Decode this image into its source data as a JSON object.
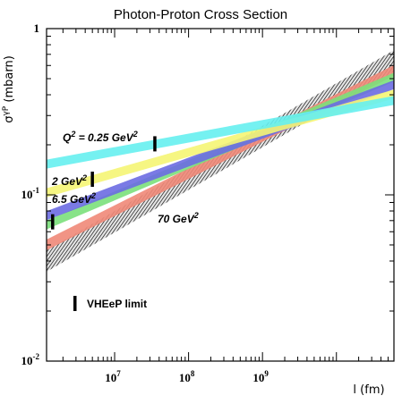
{
  "chart_data": {
    "type": "line",
    "title": "Photon-Proton Cross Section",
    "xlabel": "l (fm)",
    "ylabel": "σγP (mbarn)",
    "xscale": "log",
    "yscale": "log",
    "xlim": [
      1200000,
      60000000000
    ],
    "ylim": [
      0.01,
      1
    ],
    "x_ticks": [
      {
        "value": 10000000,
        "label": "10",
        "exp": "7"
      },
      {
        "value": 100000000,
        "label": "10",
        "exp": "8"
      },
      {
        "value": 1000000000,
        "label": "10",
        "exp": "9"
      }
    ],
    "y_ticks": [
      {
        "value": 1,
        "label": "1",
        "exp": ""
      },
      {
        "value": 0.1,
        "label": "10",
        "exp": "-1"
      },
      {
        "value": 0.01,
        "label": "10",
        "exp": "-2"
      }
    ],
    "x": [
      1200000,
      60000000000
    ],
    "series": [
      {
        "name": "Q² = 0.25 GeV²",
        "color": "#66f0f0",
        "values": [
          0.153,
          0.37
        ],
        "limit_x": 35000000
      },
      {
        "name": "2 GeV²",
        "color": "#f5f574",
        "values": [
          0.103,
          0.404
        ],
        "limit_x": 5000000
      },
      {
        "name": "",
        "color": "#6c6ce2",
        "values": [
          0.075,
          0.46
        ],
        "limit_x": null
      },
      {
        "name": "6.5 GeV²",
        "color": "#7be07b",
        "values": [
          0.066,
          0.51
        ],
        "limit_x": 1450000
      },
      {
        "name": "",
        "color": "#f08878",
        "values": [
          0.05,
          0.56
        ],
        "limit_x": null
      },
      {
        "name": "70 GeV²",
        "color": "#555555",
        "values": [
          0.04,
          0.64
        ],
        "limit_x": null
      }
    ],
    "legend": {
      "label": "VHEeP limit",
      "position": "bottom-left"
    }
  }
}
